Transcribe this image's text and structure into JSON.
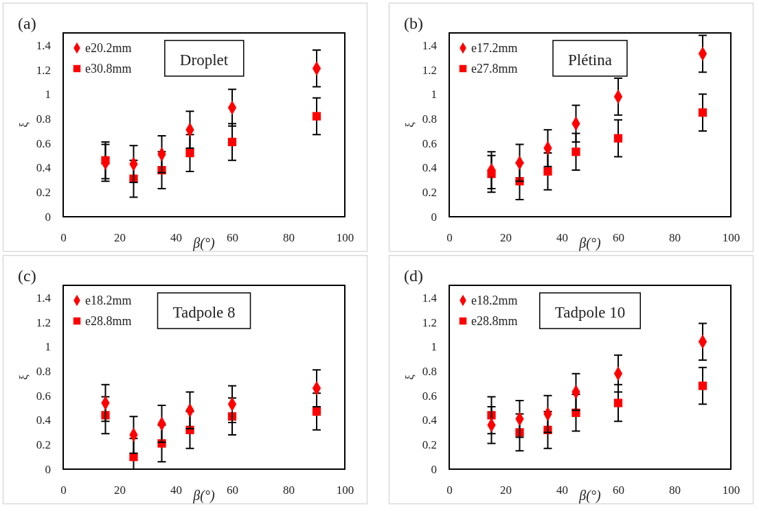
{
  "chart_data": [
    {
      "type": "scatter",
      "title": "Droplet",
      "annotations": [
        "(a)"
      ],
      "xlabel": "β(°)",
      "ylabel": "ξ",
      "xlim": [
        0,
        100
      ],
      "ylim": [
        0,
        1.5
      ],
      "xticks": [
        0,
        20,
        40,
        60,
        80,
        100
      ],
      "yticks": [
        0,
        0.2,
        0.4,
        0.6,
        0.8,
        1,
        1.2,
        1.4
      ],
      "legend": "top left",
      "x": [
        15,
        25,
        35,
        45,
        60,
        90
      ],
      "series": [
        {
          "name": "e20.2mm",
          "color": "#ff0000",
          "marker": "diamond",
          "values": [
            0.44,
            0.43,
            0.51,
            0.71,
            0.89,
            1.21
          ],
          "errors": [
            0.15,
            0.15,
            0.15,
            0.15,
            0.15,
            0.15
          ]
        },
        {
          "name": "e30.8mm",
          "color": "#ff0000",
          "marker": "square",
          "values": [
            0.46,
            0.31,
            0.38,
            0.52,
            0.61,
            0.82
          ],
          "errors": [
            0.15,
            0.15,
            0.15,
            0.15,
            0.15,
            0.15
          ]
        }
      ]
    },
    {
      "type": "scatter",
      "title": "Plétina",
      "annotations": [
        "(b)"
      ],
      "xlabel": "β(°)",
      "ylabel": "ξ",
      "xlim": [
        0,
        100
      ],
      "ylim": [
        0,
        1.5
      ],
      "xticks": [
        0,
        20,
        40,
        60,
        80,
        100
      ],
      "yticks": [
        0,
        0.2,
        0.4,
        0.6,
        0.8,
        1,
        1.2,
        1.4
      ],
      "legend": "top left",
      "x": [
        15,
        25,
        35,
        45,
        60,
        90
      ],
      "series": [
        {
          "name": "e17.2mm",
          "color": "#ff0000",
          "marker": "diamond",
          "values": [
            0.38,
            0.44,
            0.56,
            0.76,
            0.98,
            1.33
          ],
          "errors": [
            0.15,
            0.15,
            0.15,
            0.15,
            0.15,
            0.15
          ]
        },
        {
          "name": "e27.8mm",
          "color": "#ff0000",
          "marker": "square",
          "values": [
            0.35,
            0.29,
            0.37,
            0.53,
            0.64,
            0.85
          ],
          "errors": [
            0.15,
            0.15,
            0.15,
            0.15,
            0.15,
            0.15
          ]
        }
      ]
    },
    {
      "type": "scatter",
      "title": "Tadpole 8",
      "annotations": [
        "(c)"
      ],
      "xlabel": "β(°)",
      "ylabel": "ξ",
      "xlim": [
        0,
        100
      ],
      "ylim": [
        0,
        1.5
      ],
      "xticks": [
        0,
        20,
        40,
        60,
        80,
        100
      ],
      "yticks": [
        0,
        0.2,
        0.4,
        0.6,
        0.8,
        1,
        1.2,
        1.4
      ],
      "legend": "top left",
      "x": [
        15,
        25,
        35,
        45,
        60,
        90
      ],
      "series": [
        {
          "name": "e18.2mm",
          "color": "#ff0000",
          "marker": "diamond",
          "values": [
            0.54,
            0.28,
            0.37,
            0.48,
            0.53,
            0.66
          ],
          "errors": [
            0.15,
            0.15,
            0.15,
            0.15,
            0.15,
            0.15
          ]
        },
        {
          "name": "e28.8mm",
          "color": "#ff0000",
          "marker": "square",
          "values": [
            0.44,
            0.1,
            0.21,
            0.32,
            0.43,
            0.47
          ],
          "errors": [
            0.15,
            [
              0,
              0.25
            ],
            0.15,
            0.15,
            0.15,
            0.15
          ]
        }
      ]
    },
    {
      "type": "scatter",
      "title": "Tadpole 10",
      "annotations": [
        "(d)"
      ],
      "xlabel": "β(°)",
      "ylabel": "ξ",
      "xlim": [
        0,
        100
      ],
      "ylim": [
        0,
        1.5
      ],
      "xticks": [
        0,
        20,
        40,
        60,
        80,
        100
      ],
      "yticks": [
        0,
        0.2,
        0.4,
        0.6,
        0.8,
        1,
        1.2,
        1.4
      ],
      "legend": "top left",
      "x": [
        15,
        25,
        35,
        45,
        60,
        90
      ],
      "series": [
        {
          "name": "e18.2mm",
          "color": "#ff0000",
          "marker": "diamond",
          "values": [
            0.36,
            0.41,
            0.45,
            0.63,
            0.78,
            1.04
          ],
          "errors": [
            0.15,
            0.15,
            0.15,
            0.15,
            0.15,
            0.15
          ]
        },
        {
          "name": "e28.8mm",
          "color": "#ff0000",
          "marker": "square",
          "values": [
            0.44,
            0.3,
            0.32,
            0.46,
            0.54,
            0.68
          ],
          "errors": [
            0.15,
            0.15,
            0.15,
            0.15,
            0.15,
            0.15
          ]
        }
      ]
    }
  ]
}
